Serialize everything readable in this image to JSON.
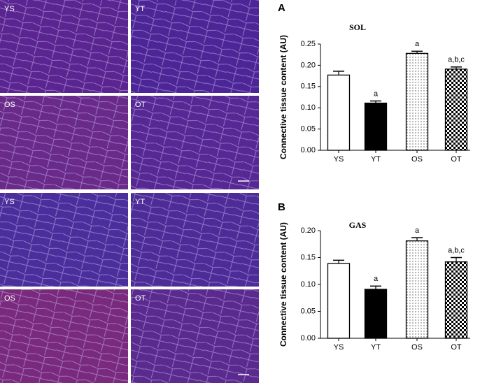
{
  "micrographs": [
    {
      "label": "YS"
    },
    {
      "label": "YT"
    },
    {
      "label": "OS"
    },
    {
      "label": "OT"
    },
    {
      "label": "YS"
    },
    {
      "label": "YT"
    },
    {
      "label": "OS"
    },
    {
      "label": "OT"
    }
  ],
  "chart_data": [
    {
      "type": "bar",
      "panel": "A",
      "title": "SOL",
      "y_label": "Connective tissue content (AU)",
      "categories": [
        "YS",
        "YT",
        "OS",
        "OT"
      ],
      "values": [
        0.177,
        0.111,
        0.228,
        0.191
      ],
      "errors": [
        0.009,
        0.005,
        0.005,
        0.005
      ],
      "annotations": [
        null,
        "a",
        "a",
        "a,b,c"
      ],
      "fills": [
        "white",
        "black",
        "dots",
        "checker"
      ],
      "ylim": [
        0,
        0.25
      ],
      "yticks": [
        {
          "value": 0,
          "label": "0.00"
        },
        {
          "value": 0.05,
          "label": "0.05"
        },
        {
          "value": 0.1,
          "label": "0.10"
        },
        {
          "value": 0.15,
          "label": "0.15"
        },
        {
          "value": 0.2,
          "label": "0.20"
        },
        {
          "value": 0.25,
          "label": "0.25"
        }
      ]
    },
    {
      "type": "bar",
      "panel": "B",
      "title": "GAS",
      "y_label": "Connective tissue content (AU)",
      "categories": [
        "YS",
        "YT",
        "OS",
        "OT"
      ],
      "values": [
        0.139,
        0.091,
        0.181,
        0.142
      ],
      "errors": [
        0.006,
        0.006,
        0.006,
        0.008
      ],
      "annotations": [
        null,
        "a",
        "a",
        "a,b,c"
      ],
      "fills": [
        "white",
        "black",
        "dots",
        "checker"
      ],
      "ylim": [
        0,
        0.2
      ],
      "yticks": [
        {
          "value": 0,
          "label": "0.00"
        },
        {
          "value": 0.05,
          "label": "0.05"
        },
        {
          "value": 0.1,
          "label": "0.10"
        },
        {
          "value": 0.15,
          "label": "0.15"
        },
        {
          "value": 0.2,
          "label": "0.20"
        }
      ]
    }
  ]
}
